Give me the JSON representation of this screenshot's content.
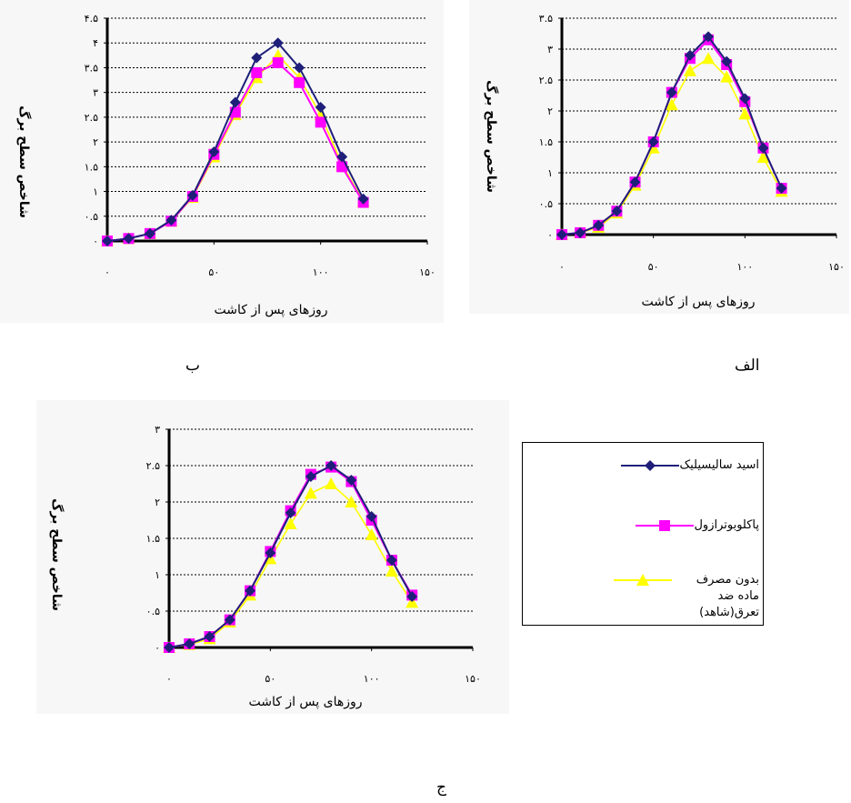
{
  "captions": {
    "alef": "الف",
    "be": "ب",
    "jim": "ج"
  },
  "legend": [
    {
      "label": "اسید سالیسیلیک",
      "color": "#1f1f7a",
      "marker": "diamond"
    },
    {
      "label": "پاکلوبوترازول",
      "color": "#ff00ff",
      "marker": "square"
    },
    {
      "label": "بدون مصرف ماده ضد تعرق(شاهد)",
      "color": "#ffff00",
      "marker": "triangle"
    }
  ],
  "chart_data": [
    {
      "type": "line",
      "panel": "alef",
      "xlabel": "روزهای پس از کاشت",
      "ylabel": "شاخص سطح برگ",
      "xlim": [
        0,
        150
      ],
      "ylim": [
        0,
        3.5
      ],
      "xticks": [
        "۰",
        "۵۰",
        "۱۰۰",
        "۱۵۰"
      ],
      "yticks": [
        "۰",
        "۰.۵",
        "۱",
        "۱.۵",
        "۲",
        "۲.۵",
        "۳",
        "۳.۵"
      ],
      "x": [
        0,
        10,
        20,
        30,
        40,
        50,
        60,
        70,
        80,
        90,
        100,
        110,
        120
      ],
      "series": [
        {
          "name": "اسید سالیسیلیک",
          "values": [
            0,
            0.03,
            0.15,
            0.38,
            0.85,
            1.5,
            2.3,
            2.9,
            3.2,
            2.8,
            2.2,
            1.4,
            0.75
          ]
        },
        {
          "name": "پاکلوبوترازول",
          "values": [
            0,
            0.03,
            0.15,
            0.38,
            0.85,
            1.5,
            2.3,
            2.85,
            3.15,
            2.75,
            2.15,
            1.4,
            0.75
          ]
        },
        {
          "name": "بدون مصرف ماده ضد تعرق(شاهد)",
          "values": [
            0,
            0.03,
            0.12,
            0.35,
            0.8,
            1.4,
            2.1,
            2.65,
            2.85,
            2.55,
            1.95,
            1.25,
            0.7
          ]
        }
      ]
    },
    {
      "type": "line",
      "panel": "be",
      "xlabel": "روزهای پس از کاشت",
      "ylabel": "شاخص سطح برگ",
      "xlim": [
        0,
        150
      ],
      "ylim": [
        0,
        4.5
      ],
      "xticks": [
        "۰",
        "۵۰",
        "۱۰۰",
        "۱۵۰"
      ],
      "yticks": [
        "۰",
        "۰.۵",
        "۱",
        "۱.۵",
        "۲",
        "۲.۵",
        "۳",
        "۳.۵",
        "۴",
        "۴.۵"
      ],
      "x": [
        0,
        10,
        20,
        30,
        40,
        50,
        60,
        70,
        80,
        90,
        100,
        110,
        120
      ],
      "series": [
        {
          "name": "اسید سالیسیلیک",
          "values": [
            0,
            0.05,
            0.15,
            0.42,
            0.92,
            1.8,
            2.8,
            3.7,
            4.0,
            3.5,
            2.7,
            1.7,
            0.85
          ]
        },
        {
          "name": "پاکلوبوترازول",
          "values": [
            0,
            0.05,
            0.15,
            0.4,
            0.9,
            1.75,
            2.6,
            3.4,
            3.6,
            3.2,
            2.4,
            1.5,
            0.78
          ]
        },
        {
          "name": "بدون مصرف ماده ضد تعرق(شاهد)",
          "values": [
            0,
            0.05,
            0.15,
            0.4,
            0.88,
            1.7,
            2.55,
            3.3,
            3.75,
            3.3,
            2.55,
            1.55,
            0.8
          ]
        }
      ]
    },
    {
      "type": "line",
      "panel": "jim",
      "xlabel": "روزهای پس از کاشت",
      "ylabel": "شاخص سطح برگ",
      "xlim": [
        0,
        150
      ],
      "ylim": [
        0,
        3
      ],
      "xticks": [
        "۰",
        "۵۰",
        "۱۰۰",
        "۱۵۰"
      ],
      "yticks": [
        "۰",
        "۰.۵",
        "۱",
        "۱.۵",
        "۲",
        "۲.۵",
        "۳"
      ],
      "x": [
        0,
        10,
        20,
        30,
        40,
        50,
        60,
        70,
        80,
        90,
        100,
        110,
        120
      ],
      "series": [
        {
          "name": "اسید سالیسیلیک",
          "values": [
            0,
            0.05,
            0.15,
            0.38,
            0.78,
            1.3,
            1.85,
            2.35,
            2.5,
            2.3,
            1.8,
            1.2,
            0.7
          ]
        },
        {
          "name": "پاکلوبوترازول",
          "values": [
            0,
            0.05,
            0.15,
            0.38,
            0.78,
            1.32,
            1.88,
            2.38,
            2.48,
            2.28,
            1.75,
            1.2,
            0.72
          ]
        },
        {
          "name": "بدون مصرف ماده ضد تعرق(شاهد)",
          "values": [
            0,
            0.04,
            0.12,
            0.35,
            0.72,
            1.22,
            1.7,
            2.12,
            2.25,
            2.0,
            1.55,
            1.05,
            0.62
          ]
        }
      ]
    }
  ]
}
